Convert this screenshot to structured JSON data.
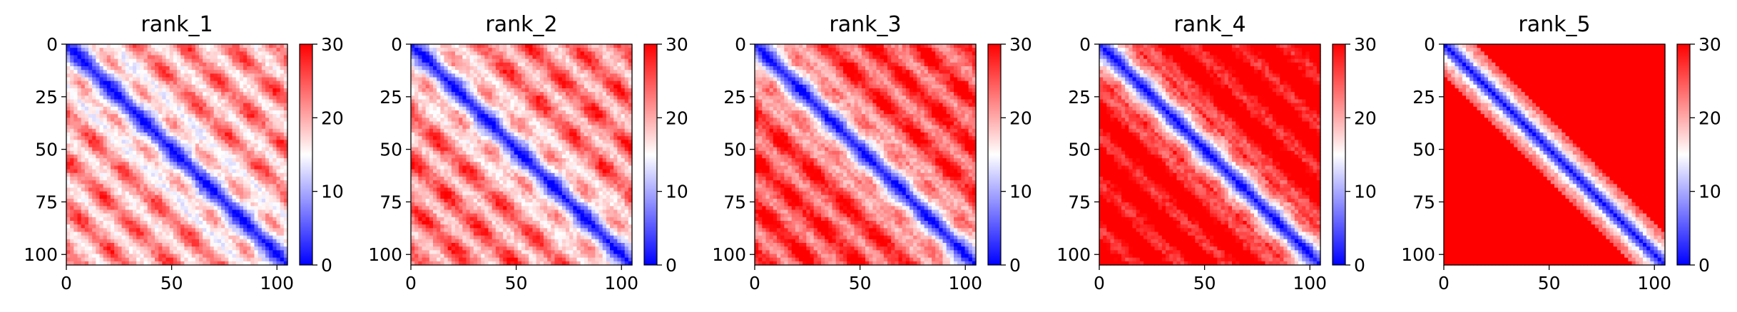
{
  "chart_data": [
    {
      "type": "heatmap",
      "title": "rank_1",
      "xlabel": "",
      "ylabel": "",
      "xlim": [
        0,
        105
      ],
      "ylim": [
        105,
        0
      ],
      "x_ticks": [
        "0",
        "50",
        "100"
      ],
      "y_ticks": [
        "0",
        "25",
        "50",
        "75",
        "100"
      ],
      "colorbar": {
        "range": [
          0,
          30
        ],
        "ticks": [
          "0",
          "10",
          "20",
          "30"
        ],
        "colors": [
          "#0000ff",
          "#ffffff",
          "#ff0000"
        ]
      },
      "pattern": {
        "n": 105,
        "diag_blue_width": 4,
        "period": 22,
        "offset_amp": 6,
        "far_red": 0.55
      }
    },
    {
      "type": "heatmap",
      "title": "rank_2",
      "xlabel": "",
      "ylabel": "",
      "xlim": [
        0,
        105
      ],
      "ylim": [
        105,
        0
      ],
      "x_ticks": [
        "0",
        "50",
        "100"
      ],
      "y_ticks": [
        "0",
        "25",
        "50",
        "75",
        "100"
      ],
      "colorbar": {
        "range": [
          0,
          30
        ],
        "ticks": [
          "0",
          "10",
          "20",
          "30"
        ],
        "colors": [
          "#0000ff",
          "#ffffff",
          "#ff0000"
        ]
      },
      "pattern": {
        "n": 105,
        "diag_blue_width": 4,
        "period": 22,
        "offset_amp": 6,
        "far_red": 0.6
      }
    },
    {
      "type": "heatmap",
      "title": "rank_3",
      "xlabel": "",
      "ylabel": "",
      "xlim": [
        0,
        105
      ],
      "ylim": [
        105,
        0
      ],
      "x_ticks": [
        "0",
        "50",
        "100"
      ],
      "y_ticks": [
        "0",
        "25",
        "50",
        "75",
        "100"
      ],
      "colorbar": {
        "range": [
          0,
          30
        ],
        "ticks": [
          "0",
          "10",
          "20",
          "30"
        ],
        "colors": [
          "#0000ff",
          "#ffffff",
          "#ff0000"
        ]
      },
      "pattern": {
        "n": 105,
        "diag_blue_width": 4,
        "period": 22,
        "offset_amp": 5,
        "far_red": 0.7
      }
    },
    {
      "type": "heatmap",
      "title": "rank_4",
      "xlabel": "",
      "ylabel": "",
      "xlim": [
        0,
        105
      ],
      "ylim": [
        105,
        0
      ],
      "x_ticks": [
        "0",
        "50",
        "100"
      ],
      "y_ticks": [
        "0",
        "25",
        "50",
        "75",
        "100"
      ],
      "colorbar": {
        "range": [
          0,
          30
        ],
        "ticks": [
          "0",
          "10",
          "20",
          "30"
        ],
        "colors": [
          "#0000ff",
          "#ffffff",
          "#ff0000"
        ]
      },
      "pattern": {
        "n": 105,
        "diag_blue_width": 4,
        "period": 22,
        "offset_amp": 4,
        "far_red": 0.85
      }
    },
    {
      "type": "heatmap",
      "title": "rank_5",
      "xlabel": "",
      "ylabel": "",
      "xlim": [
        0,
        105
      ],
      "ylim": [
        105,
        0
      ],
      "x_ticks": [
        "0",
        "50",
        "100"
      ],
      "y_ticks": [
        "0",
        "25",
        "50",
        "75",
        "100"
      ],
      "colorbar": {
        "range": [
          0,
          30
        ],
        "ticks": [
          "0",
          "10",
          "20",
          "30"
        ],
        "colors": [
          "#0000ff",
          "#ffffff",
          "#ff0000"
        ]
      },
      "pattern": {
        "n": 105,
        "diag_blue_width": 4,
        "period": 0,
        "offset_amp": 0,
        "far_red": 1.0
      }
    }
  ]
}
